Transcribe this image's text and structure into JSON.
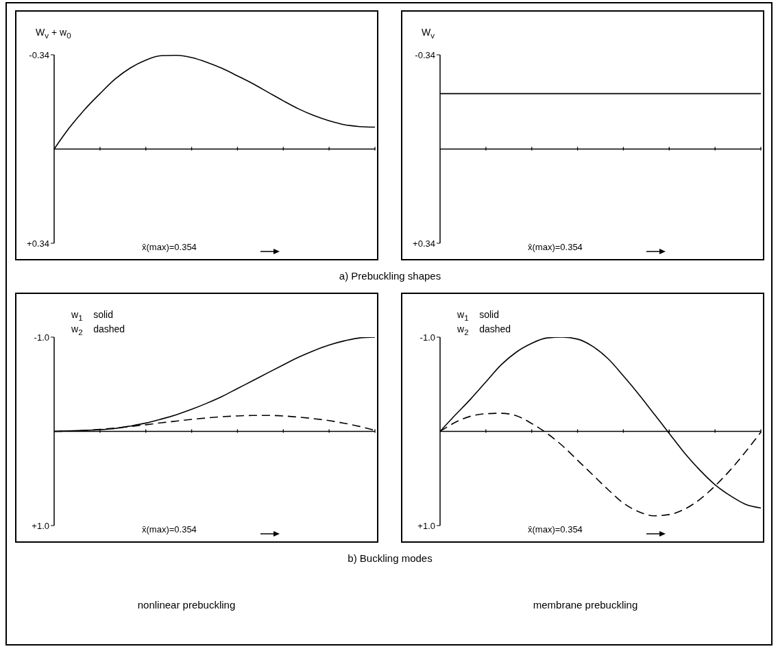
{
  "chart_data": [
    {
      "type": "line",
      "ylabel": "W$_{v}$ + w$_{0}$",
      "categories": [
        null,
        null,
        null,
        null,
        null,
        null,
        null,
        null,
        null,
        null,
        null,
        null,
        null,
        null,
        null,
        null,
        null,
        null,
        null,
        null,
        null,
        null
      ],
      "series": [
        {
          "color": "#000000",
          "values": [
            0,
            -0.077,
            -0.143,
            -0.2,
            -0.253,
            -0.293,
            -0.321,
            -0.337,
            -0.338,
            -0.33,
            -0.313,
            -0.291,
            -0.264,
            -0.236,
            -0.205,
            -0.174,
            -0.145,
            -0.121,
            -0.102,
            -0.088,
            -0.081,
            -0.079
          ]
        }
      ],
      "ylim": [
        0.34,
        -0.34
      ],
      "yticks": [
        {
          "value": -0.34,
          "label": "-0.34"
        },
        {
          "value": 0.34,
          "label": "+0.34"
        }
      ],
      "tick_labels": "y",
      "annotations": [
        "x̄(max)=0.354",
        "a) Prebuckling shapes"
      ]
    },
    {
      "type": "line",
      "ylabel": "W$_{v}$",
      "categories": [
        null,
        null,
        null,
        null,
        null,
        null,
        null,
        null,
        null,
        null,
        null,
        null,
        null,
        null,
        null,
        null,
        null,
        null,
        null,
        null,
        null,
        null
      ],
      "series": [
        {
          "color": "#000000",
          "values": [
            -0.2,
            -0.2,
            -0.2,
            -0.2,
            -0.2,
            -0.2,
            -0.2,
            -0.2,
            -0.2,
            -0.2,
            -0.2,
            -0.2,
            -0.2,
            -0.2,
            -0.2,
            -0.2,
            -0.2,
            -0.2,
            -0.2,
            -0.2,
            -0.2,
            -0.2
          ]
        }
      ],
      "ylim": [
        0.34,
        -0.34
      ],
      "yticks": [
        {
          "value": -0.34,
          "label": "-0.34"
        },
        {
          "value": 0.34,
          "label": "+0.34"
        }
      ],
      "tick_labels": "y",
      "annotations": [
        "x̄(max)=0.354"
      ]
    },
    {
      "type": "line",
      "categories": [
        null,
        null,
        null,
        null,
        null,
        null,
        null,
        null,
        null,
        null,
        null,
        null,
        null,
        null,
        null,
        null,
        null,
        null,
        null,
        null,
        null,
        null
      ],
      "series": [
        {
          "name": "w$_{1}$    solid",
          "color": "#000000",
          "line_style": "solid",
          "values": [
            0,
            -0.005,
            -0.01,
            -0.018,
            -0.031,
            -0.057,
            -0.088,
            -0.13,
            -0.177,
            -0.234,
            -0.299,
            -0.371,
            -0.455,
            -0.538,
            -0.623,
            -0.706,
            -0.787,
            -0.857,
            -0.917,
            -0.961,
            -0.992,
            -1.0
          ]
        },
        {
          "name": "w$_{2}$    dashed",
          "color": "#000000",
          "line_style": "dashed",
          "values": [
            0,
            -0.003,
            -0.01,
            -0.021,
            -0.036,
            -0.052,
            -0.07,
            -0.091,
            -0.109,
            -0.127,
            -0.143,
            -0.156,
            -0.164,
            -0.169,
            -0.169,
            -0.164,
            -0.151,
            -0.135,
            -0.114,
            -0.086,
            -0.052,
            -0.01
          ]
        }
      ],
      "ylim": [
        1.0,
        -1.0
      ],
      "yticks": [
        {
          "value": -1.0,
          "label": "-1.0"
        },
        {
          "value": 1.0,
          "label": "+1.0"
        }
      ],
      "tick_labels": "y",
      "annotations": [
        "x̄(max)=0.354",
        "b) Buckling modes",
        "nonlinear prebuckling"
      ]
    },
    {
      "type": "line",
      "categories": [
        null,
        null,
        null,
        null,
        null,
        null,
        null,
        null,
        null,
        null,
        null,
        null,
        null,
        null,
        null,
        null,
        null,
        null,
        null,
        null,
        null,
        null
      ],
      "series": [
        {
          "name": "w$_{1}$    solid",
          "color": "#000000",
          "line_style": "solid",
          "values": [
            0,
            -0.174,
            -0.343,
            -0.525,
            -0.706,
            -0.842,
            -0.935,
            -0.992,
            -1.0,
            -0.979,
            -0.901,
            -0.771,
            -0.589,
            -0.395,
            -0.187,
            0.021,
            0.229,
            0.41,
            0.566,
            0.683,
            0.774,
            0.813
          ]
        },
        {
          "name": "w$_{2}$    dashed",
          "color": "#000000",
          "line_style": "dashed",
          "values": [
            0,
            -0.096,
            -0.161,
            -0.187,
            -0.192,
            -0.166,
            -0.083,
            0.021,
            0.151,
            0.306,
            0.462,
            0.618,
            0.761,
            0.852,
            0.896,
            0.883,
            0.826,
            0.722,
            0.579,
            0.41,
            0.216,
            0.008
          ]
        }
      ],
      "ylim": [
        1.0,
        -1.0
      ],
      "yticks": [
        {
          "value": -1.0,
          "label": "-1.0"
        },
        {
          "value": 1.0,
          "label": "+1.0"
        }
      ],
      "tick_labels": "y",
      "annotations": [
        "x̄(max)=0.354",
        "membrane prebuckling"
      ]
    }
  ]
}
